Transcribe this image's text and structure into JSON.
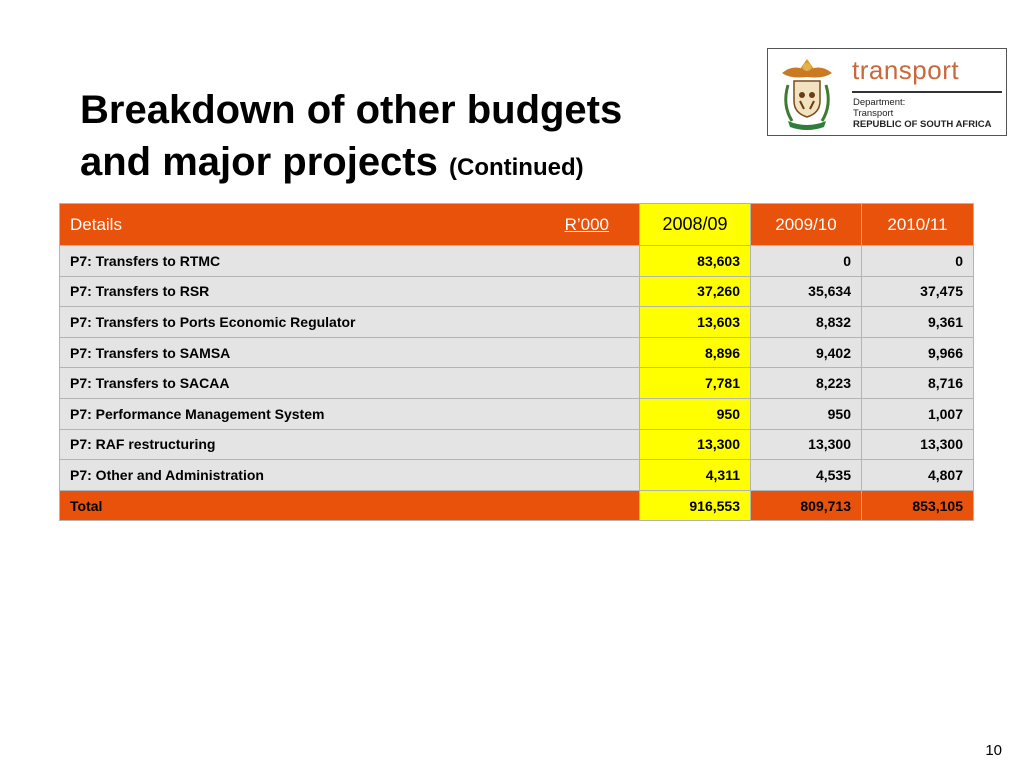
{
  "slide": {
    "title_line1": "Breakdown of other budgets",
    "title_line2": "and major projects",
    "title_suffix": "(Continued)",
    "page_number": "10"
  },
  "logo": {
    "brand": "transport",
    "dept_line1": "Department:",
    "dept_line2": "Transport",
    "dept_line3": "REPUBLIC OF SOUTH AFRICA"
  },
  "table": {
    "header": {
      "details": "Details",
      "unit": "R’000",
      "col1": "2008/09",
      "col2": "2009/10",
      "col3": "2010/11"
    },
    "rows": [
      {
        "label": "P7: Transfers to RTMC",
        "v1": "83,603",
        "v2": "0",
        "v3": "0"
      },
      {
        "label": "P7: Transfers to RSR",
        "v1": "37,260",
        "v2": "35,634",
        "v3": "37,475"
      },
      {
        "label": "P7: Transfers to Ports Economic Regulator",
        "v1": "13,603",
        "v2": "8,832",
        "v3": "9,361"
      },
      {
        "label": "P7: Transfers to SAMSA",
        "v1": "8,896",
        "v2": "9,402",
        "v3": "9,966"
      },
      {
        "label": "P7: Transfers to SACAA",
        "v1": "7,781",
        "v2": "8,223",
        "v3": "8,716"
      },
      {
        "label": "P7: Performance Management System",
        "v1": "950",
        "v2": "950",
        "v3": "1,007"
      },
      {
        "label": "P7: RAF restructuring",
        "v1": "13,300",
        "v2": "13,300",
        "v3": "13,300"
      },
      {
        "label": "P7: Other and Administration",
        "v1": "4,311",
        "v2": "4,535",
        "v3": "4,807"
      }
    ],
    "total": {
      "label": "Total",
      "v1": "916,553",
      "v2": "809,713",
      "v3": "853,105"
    }
  },
  "colors": {
    "header_orange": "#e8520a",
    "highlight_yellow": "#ffff00",
    "row_grey": "#e4e4e4",
    "brand_orange": "#c9683a"
  }
}
